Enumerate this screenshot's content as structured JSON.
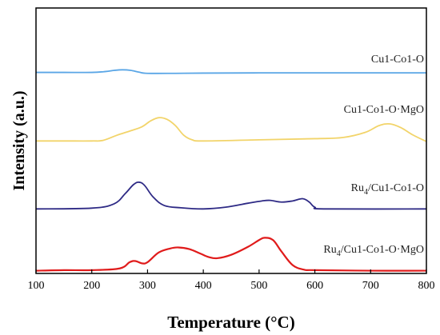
{
  "chart_data": {
    "type": "line",
    "title": "",
    "xlabel": "Temperature (°C)",
    "ylabel": "Intensity (a.u.)",
    "xlim": [
      100,
      800
    ],
    "x_ticks": [
      "100",
      "200",
      "300",
      "400",
      "500",
      "600",
      "700",
      "800"
    ],
    "grid": false,
    "legend": "labels beside each curve, right side",
    "series": [
      {
        "label_main": "Cu1-Co1-O",
        "label_sub": "",
        "label_rest": "",
        "color": "#5aa6e6",
        "offset": 3,
        "points": [
          [
            100,
            0.1
          ],
          [
            150,
            0.1
          ],
          [
            200,
            0.1
          ],
          [
            225,
            0.18
          ],
          [
            240,
            0.28
          ],
          [
            255,
            0.33
          ],
          [
            270,
            0.28
          ],
          [
            285,
            0.12
          ],
          [
            300,
            0.02
          ],
          [
            350,
            0.02
          ],
          [
            400,
            0.04
          ],
          [
            500,
            0.06
          ],
          [
            600,
            0.06
          ],
          [
            700,
            0.06
          ],
          [
            800,
            0.06
          ]
        ]
      },
      {
        "label_main": "Cu1-Co1-O·MgO",
        "label_sub": "",
        "label_rest": "",
        "color": "#f2d46a",
        "offset": 2,
        "points": [
          [
            100,
            0.05
          ],
          [
            150,
            0.05
          ],
          [
            200,
            0.05
          ],
          [
            220,
            0.1
          ],
          [
            245,
            0.55
          ],
          [
            270,
            0.95
          ],
          [
            290,
            1.3
          ],
          [
            305,
            1.8
          ],
          [
            320,
            2.1
          ],
          [
            335,
            1.95
          ],
          [
            350,
            1.4
          ],
          [
            365,
            0.55
          ],
          [
            380,
            0.15
          ],
          [
            400,
            0.05
          ],
          [
            500,
            0.15
          ],
          [
            600,
            0.25
          ],
          [
            650,
            0.35
          ],
          [
            690,
            0.8
          ],
          [
            715,
            1.4
          ],
          [
            735,
            1.55
          ],
          [
            755,
            1.2
          ],
          [
            775,
            0.6
          ],
          [
            800,
            0.0
          ]
        ]
      },
      {
        "label_main": "Ru",
        "label_sub": "4",
        "label_rest": "/Cu1-Co1-O",
        "color": "#2e2a85",
        "offset": 1,
        "points": [
          [
            100,
            0.05
          ],
          [
            200,
            0.12
          ],
          [
            240,
            0.5
          ],
          [
            260,
            1.4
          ],
          [
            275,
            2.2
          ],
          [
            285,
            2.4
          ],
          [
            295,
            2.1
          ],
          [
            310,
            1.1
          ],
          [
            330,
            0.35
          ],
          [
            360,
            0.15
          ],
          [
            400,
            0.05
          ],
          [
            440,
            0.2
          ],
          [
            480,
            0.55
          ],
          [
            505,
            0.75
          ],
          [
            520,
            0.8
          ],
          [
            540,
            0.65
          ],
          [
            560,
            0.75
          ],
          [
            578,
            0.95
          ],
          [
            590,
            0.65
          ],
          [
            600,
            0.2
          ],
          [
            620,
            0.05
          ],
          [
            800,
            0.05
          ]
        ]
      },
      {
        "label_main": "Ru",
        "label_sub": "4",
        "label_rest": "/Cu1-Co1-O·MgO",
        "color": "#e01b1b",
        "offset": 0,
        "points": [
          [
            100,
            0.1
          ],
          [
            150,
            0.15
          ],
          [
            200,
            0.15
          ],
          [
            250,
            0.3
          ],
          [
            268,
            0.85
          ],
          [
            278,
            0.95
          ],
          [
            290,
            0.75
          ],
          [
            300,
            0.85
          ],
          [
            320,
            1.7
          ],
          [
            340,
            2.05
          ],
          [
            355,
            2.15
          ],
          [
            375,
            2.0
          ],
          [
            395,
            1.6
          ],
          [
            410,
            1.3
          ],
          [
            425,
            1.2
          ],
          [
            450,
            1.5
          ],
          [
            480,
            2.2
          ],
          [
            500,
            2.8
          ],
          [
            510,
            3.0
          ],
          [
            525,
            2.8
          ],
          [
            540,
            1.8
          ],
          [
            560,
            0.6
          ],
          [
            580,
            0.2
          ],
          [
            600,
            0.15
          ],
          [
            700,
            0.1
          ],
          [
            800,
            0.1
          ]
        ]
      }
    ]
  }
}
